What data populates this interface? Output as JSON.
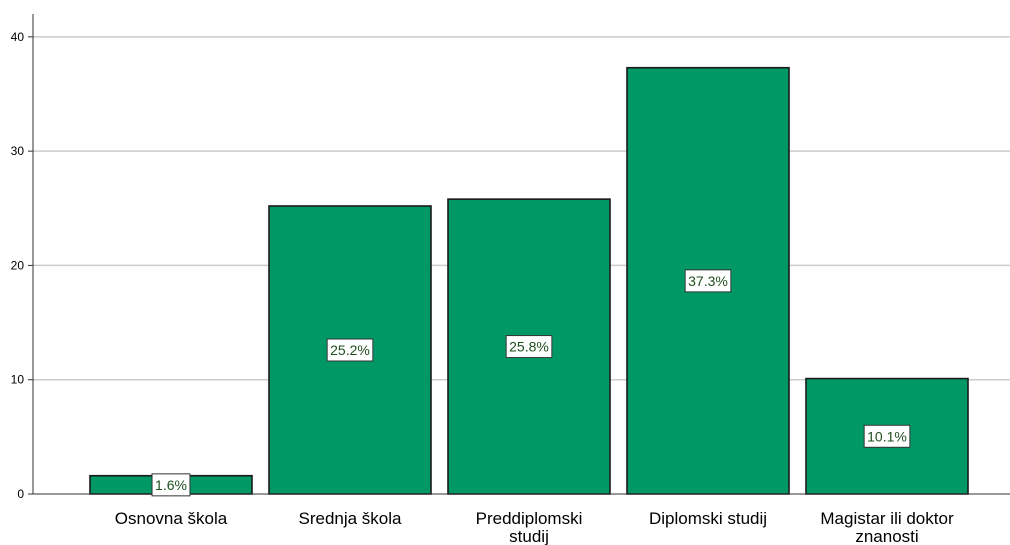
{
  "chart_data": {
    "type": "bar",
    "title": "",
    "xlabel": "",
    "ylabel": "",
    "categories": [
      [
        "Osnovna škola"
      ],
      [
        "Srednja škola"
      ],
      [
        "Preddiplomski",
        "studij"
      ],
      [
        "Diplomski studij"
      ],
      [
        "Magistar ili doktor",
        "znanosti"
      ]
    ],
    "values": [
      1.6,
      25.2,
      25.8,
      37.3,
      10.1
    ],
    "data_labels": [
      "1.6%",
      "25.2%",
      "25.8%",
      "37.3%",
      "10.1%"
    ],
    "ylim": [
      0,
      42
    ],
    "yticks": [
      0,
      10,
      20,
      30,
      40
    ],
    "grid": true,
    "legend": "none",
    "colors": {
      "bar_fill": "#009966",
      "bar_stroke": "#1a1a1a",
      "grid": "#cccccc",
      "axis": "#333333",
      "label_box_stroke": "#333333",
      "label_text": "#1f4f1f"
    }
  }
}
